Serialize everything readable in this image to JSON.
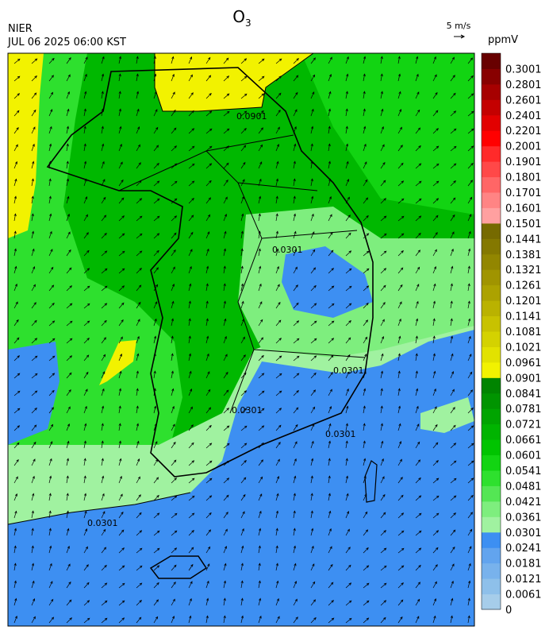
{
  "header": {
    "title": {
      "main": "O",
      "subscript": "3"
    },
    "agency": "NIER",
    "datetime": "JUL 06 2025 06:00 KST",
    "wind_scale": "5 m/s",
    "unit": "ppmV"
  },
  "map": {
    "contour_labels": [
      "0.0901",
      "0.0301",
      "0.0301",
      "0.0301",
      "0.0301",
      "0.0301"
    ]
  },
  "colorbar": {
    "labels": [
      "0",
      "0.0061",
      "0.0121",
      "0.0181",
      "0.0241",
      "0.0301",
      "0.0361",
      "0.0421",
      "0.0481",
      "0.0541",
      "0.0601",
      "0.0661",
      "0.0721",
      "0.0781",
      "0.0841",
      "0.0901",
      "0.0961",
      "0.1021",
      "0.1081",
      "0.1141",
      "0.1201",
      "0.1261",
      "0.1321",
      "0.1381",
      "0.1441",
      "0.1501",
      "0.1601",
      "0.1701",
      "0.1801",
      "0.1901",
      "0.2001",
      "0.2201",
      "0.2401",
      "0.2601",
      "0.2801",
      "0.3001"
    ],
    "colors": [
      "#a6cdea",
      "#8ec0ea",
      "#78b2ec",
      "#62a4ee",
      "#3d8ff2",
      "#a0f2a0",
      "#7eee7e",
      "#54e654",
      "#2ee02e",
      "#12d412",
      "#00c400",
      "#00b400",
      "#00a400",
      "#009400",
      "#008400",
      "#f2f200",
      "#e2e200",
      "#d4d200",
      "#c8c200",
      "#bab200",
      "#aca200",
      "#a09400",
      "#928600",
      "#847800",
      "#766a00",
      "#ffa0a0",
      "#ff8484",
      "#ff6666",
      "#ff4848",
      "#ff2a2a",
      "#ff0000",
      "#e20000",
      "#c40000",
      "#a60000",
      "#880000",
      "#680000"
    ]
  }
}
